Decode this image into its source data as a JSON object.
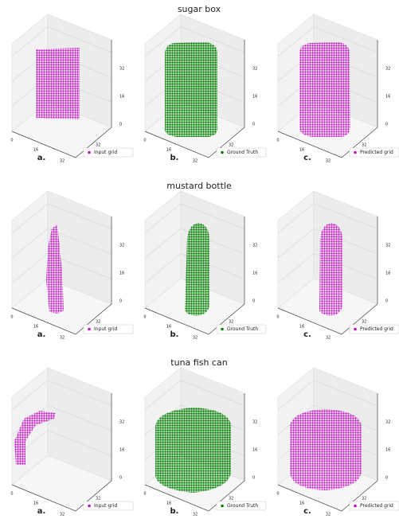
{
  "rows": [
    {
      "title": "sugar box",
      "panels": [
        {
          "letter": "a.",
          "legend": "Input grid",
          "color": "#c010c0"
        },
        {
          "letter": "b.",
          "legend": "Ground Truth",
          "color": "#008000"
        },
        {
          "letter": "c.",
          "legend": "Predicted grid",
          "color": "#c010c0"
        }
      ]
    },
    {
      "title": "mustard bottle",
      "panels": [
        {
          "letter": "a.",
          "legend": "Input grid",
          "color": "#c010c0"
        },
        {
          "letter": "b.",
          "legend": "Ground Truth",
          "color": "#008000"
        },
        {
          "letter": "c.",
          "legend": "Predicted grid",
          "color": "#c010c0"
        }
      ]
    },
    {
      "title": "tuna fish can",
      "panels": [
        {
          "letter": "a.",
          "legend": "Input grid",
          "color": "#c010c0"
        },
        {
          "letter": "b.",
          "legend": "Ground Truth",
          "color": "#008000"
        },
        {
          "letter": "c.",
          "legend": "Predicted grid",
          "color": "#c010c0"
        }
      ]
    }
  ],
  "axis_ticks": {
    "x": [
      "0",
      "16",
      "32"
    ],
    "y": [
      "32"
    ],
    "z": [
      "0",
      "16",
      "32"
    ]
  }
}
